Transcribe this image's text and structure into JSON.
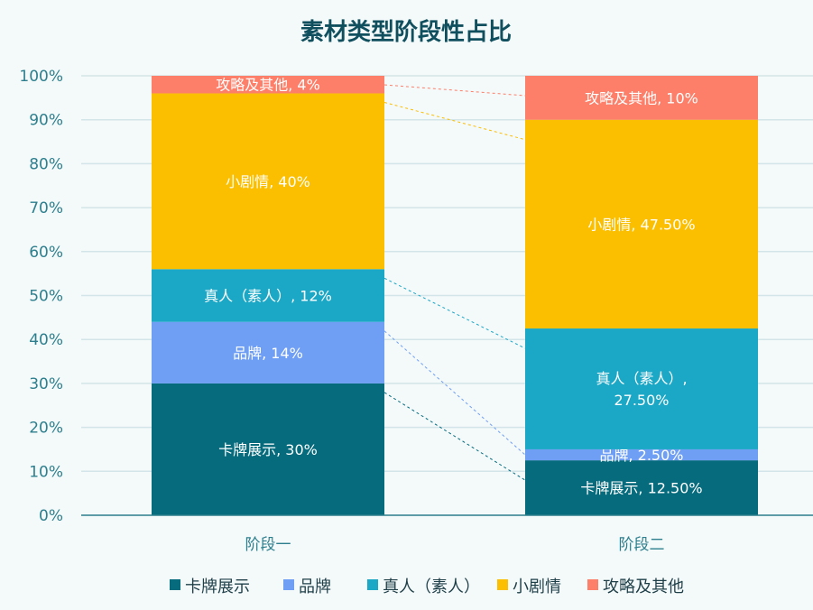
{
  "chart_data": {
    "type": "bar",
    "stacked": true,
    "title": "素材类型阶段性占比",
    "categories": [
      "阶段一",
      "阶段二"
    ],
    "ylim": [
      0,
      100
    ],
    "yticks": [
      "0%",
      "10%",
      "20%",
      "30%",
      "40%",
      "50%",
      "60%",
      "70%",
      "80%",
      "90%",
      "100%"
    ],
    "grid": true,
    "legend_position": "bottom",
    "series": [
      {
        "name": "卡牌展示",
        "color": "#056b7d",
        "values": [
          30,
          12.5
        ],
        "labels": [
          "卡牌展示, 30%",
          "卡牌展示, 12.50%"
        ]
      },
      {
        "name": "品牌",
        "color": "#6f9ff5",
        "values": [
          14,
          2.5
        ],
        "labels": [
          "品牌, 14%",
          "品牌, 2.50%"
        ]
      },
      {
        "name": "真人（素人）",
        "color": "#1ba7c6",
        "values": [
          12,
          27.5
        ],
        "labels": [
          "真人（素人）, 12%",
          "真人（素人）,\n27.50%"
        ]
      },
      {
        "name": "小剧情",
        "color": "#fbbf00",
        "values": [
          40,
          47.5
        ],
        "labels": [
          "小剧情, 40%",
          "小剧情, 47.50%"
        ]
      },
      {
        "name": "攻略及其他",
        "color": "#fe7f69",
        "values": [
          4,
          10
        ],
        "labels": [
          "攻略及其他, 4%",
          "攻略及其他, 10%"
        ]
      }
    ],
    "colors": {
      "title": "#0f4f5e",
      "axis_text": "#2d7f8d",
      "grid": "#d3e5e8",
      "legend_text": "#1e3f48",
      "label_text": "#ffffff"
    }
  }
}
